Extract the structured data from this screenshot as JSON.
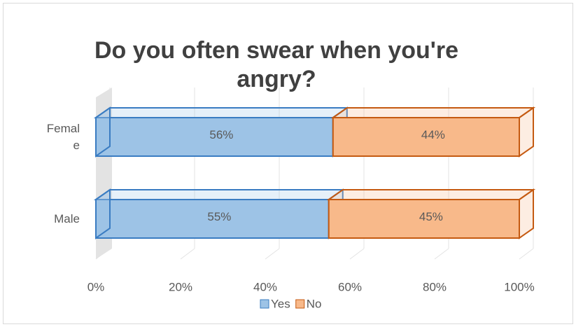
{
  "chart_data": {
    "type": "bar3d_stacked_horizontal",
    "title": "Do you often swear when you're angry?",
    "categories": [
      "Female",
      "Male"
    ],
    "series": [
      {
        "name": "Yes",
        "color": "#9dc3e6",
        "edge": "#3a7cc2",
        "values": [
          56,
          55
        ],
        "value_labels": [
          "56%",
          "55%"
        ]
      },
      {
        "name": "No",
        "color": "#f8b98a",
        "edge": "#c55a11",
        "values": [
          44,
          45
        ],
        "value_labels": [
          "44%",
          "45%"
        ]
      }
    ],
    "xlim": [
      0,
      100
    ],
    "xticks": [
      {
        "value": 0,
        "label": "0%"
      },
      {
        "value": 20,
        "label": "20%"
      },
      {
        "value": 40,
        "label": "40%"
      },
      {
        "value": 60,
        "label": "60%"
      },
      {
        "value": 80,
        "label": "80%"
      },
      {
        "value": 100,
        "label": "100%"
      }
    ],
    "grid": true,
    "legend": "bottom"
  }
}
